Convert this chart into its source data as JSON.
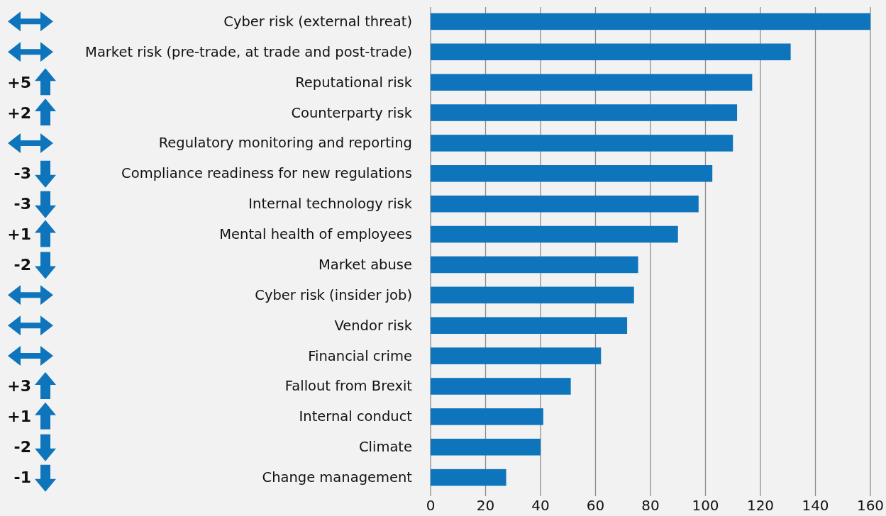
{
  "chart_data": {
    "type": "bar",
    "orientation": "horizontal",
    "categories": [
      "Cyber risk (external threat)",
      "Market risk (pre-trade, at trade and post-trade)",
      "Reputational risk",
      "Counterparty risk",
      "Regulatory monitoring and reporting",
      "Compliance readiness for new regulations",
      "Internal technology risk",
      "Mental health of employees",
      "Market abuse",
      "Cyber risk (insider job)",
      "Vendor risk",
      "Financial crime",
      "Fallout from Brexit",
      "Internal conduct",
      "Climate",
      "Change management"
    ],
    "values": [
      160,
      131,
      117,
      111.5,
      110,
      102.5,
      97.5,
      90,
      75.5,
      74,
      71.5,
      62,
      51,
      41,
      40,
      27.5
    ],
    "color": "#0e75bc",
    "xlim": [
      0,
      160
    ],
    "xticks": [
      0,
      20,
      40,
      60,
      80,
      100,
      120,
      140,
      160
    ],
    "grid": "x",
    "annotations": [
      null,
      null,
      "+5",
      "+2",
      null,
      "-3",
      "-3",
      "+1",
      "-2",
      null,
      null,
      null,
      "+3",
      "+1",
      "-2",
      "-1"
    ]
  }
}
